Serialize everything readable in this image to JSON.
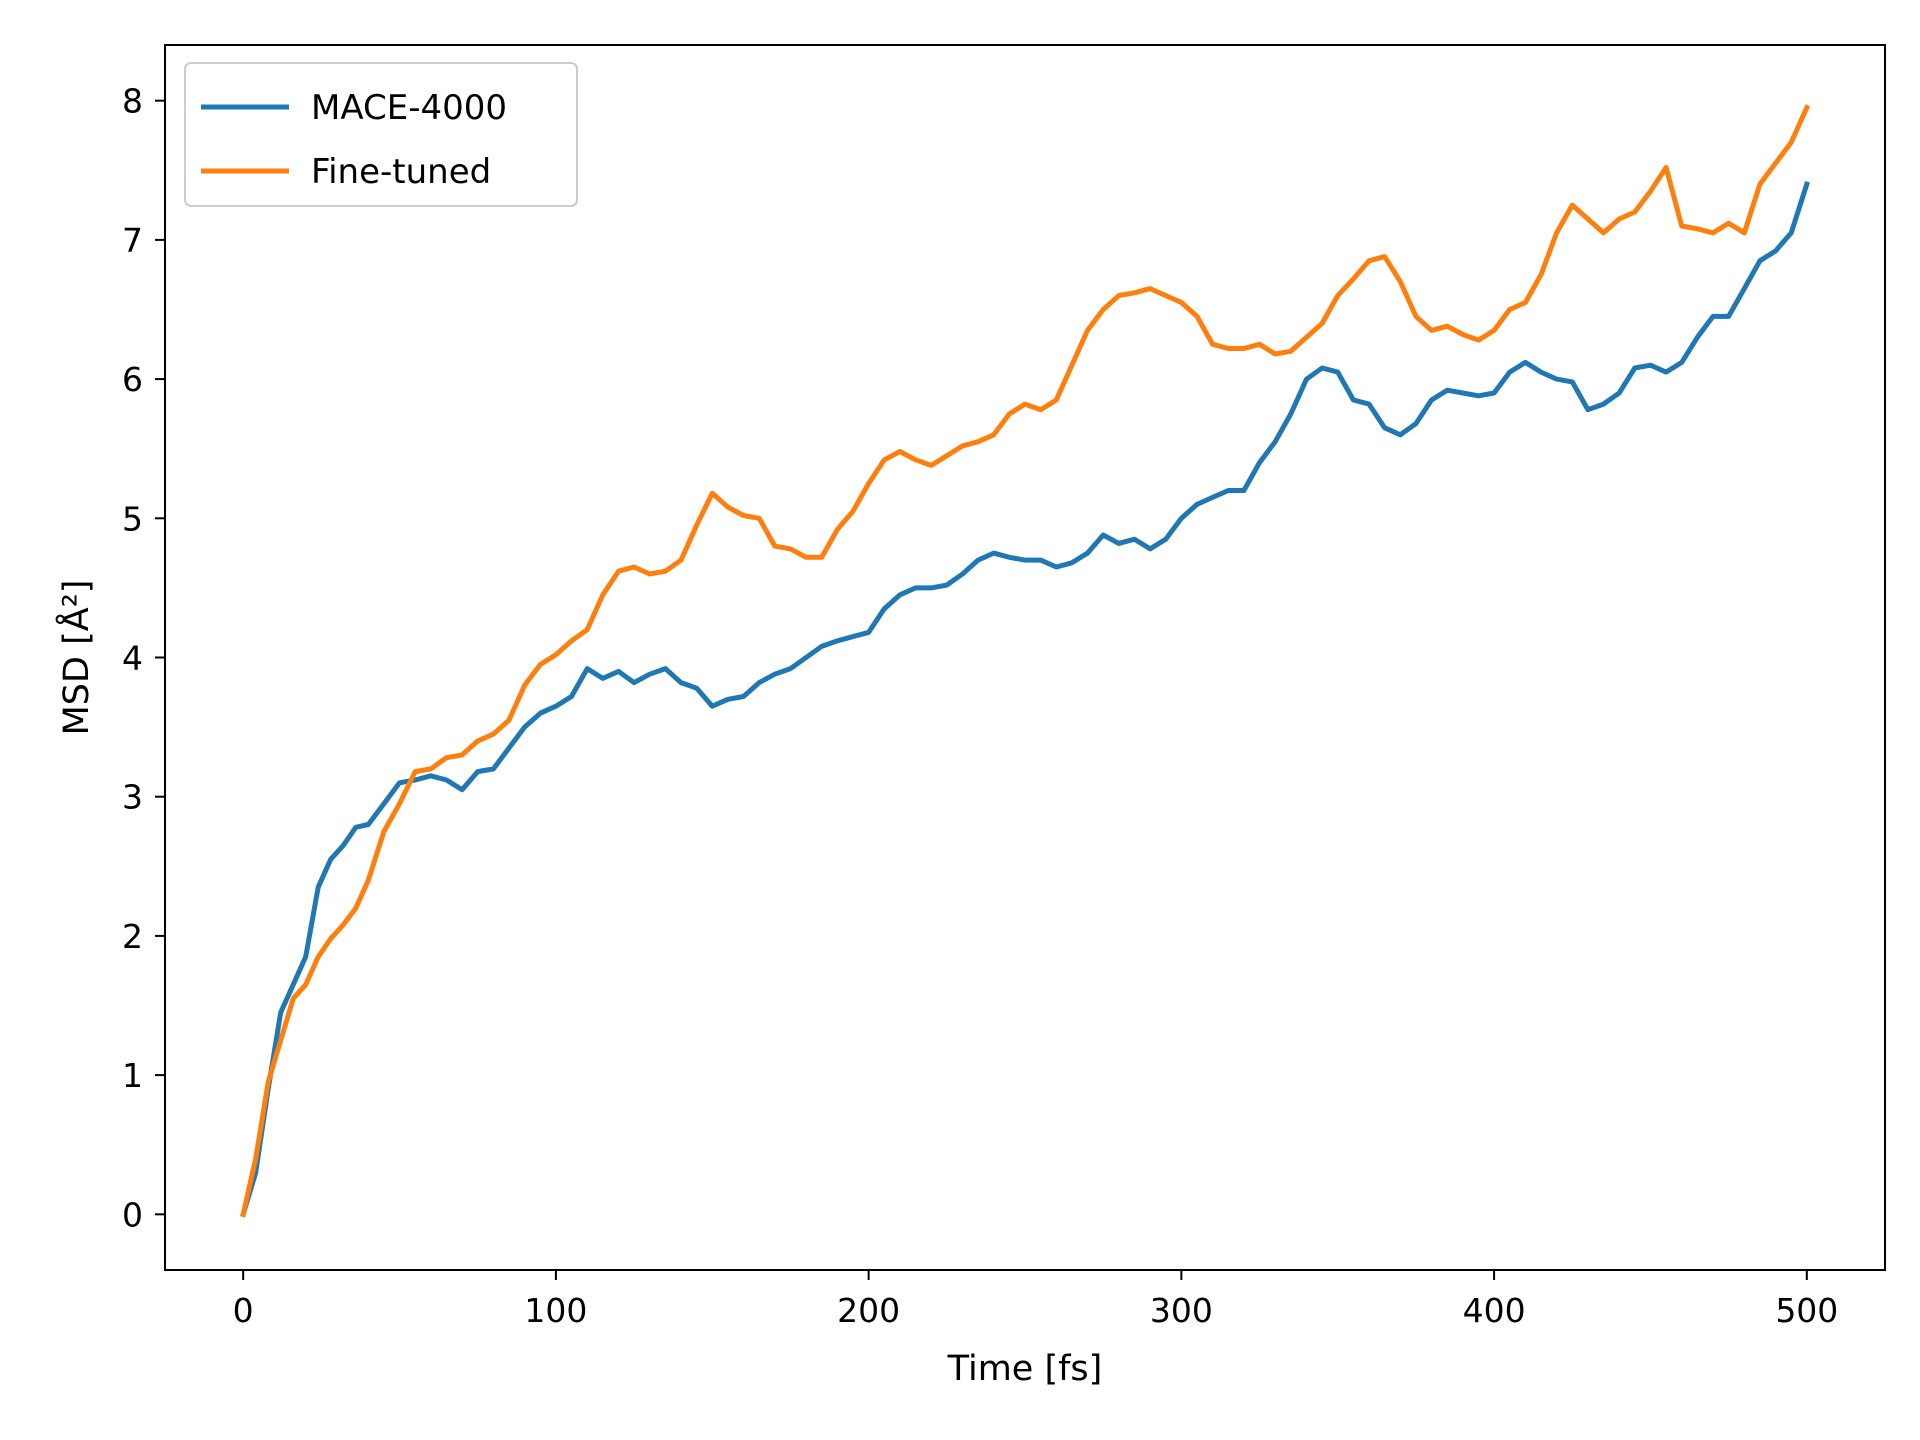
{
  "chart_data": {
    "type": "line",
    "title": "",
    "xlabel": "Time [fs]",
    "ylabel": "MSD [Å²]",
    "xlim": [
      -25,
      525
    ],
    "ylim": [
      -0.4,
      8.4
    ],
    "xticks": [
      0,
      100,
      200,
      300,
      400,
      500
    ],
    "yticks": [
      0,
      1,
      2,
      3,
      4,
      5,
      6,
      7,
      8
    ],
    "xtick_labels": [
      "0",
      "100",
      "200",
      "300",
      "400",
      "500"
    ],
    "ytick_labels": [
      "0",
      "1",
      "2",
      "3",
      "4",
      "5",
      "6",
      "7",
      "8"
    ],
    "grid": false,
    "legend_position": "top-left",
    "series": [
      {
        "name": "MACE-4000",
        "color": "#1f77b4",
        "x": [
          0,
          4,
          8,
          12,
          16,
          20,
          24,
          28,
          32,
          36,
          40,
          45,
          50,
          55,
          60,
          65,
          70,
          75,
          80,
          85,
          90,
          95,
          100,
          105,
          110,
          115,
          120,
          125,
          130,
          135,
          140,
          145,
          150,
          155,
          160,
          165,
          170,
          175,
          180,
          185,
          190,
          195,
          200,
          205,
          210,
          215,
          220,
          225,
          230,
          235,
          240,
          245,
          250,
          255,
          260,
          265,
          270,
          275,
          280,
          285,
          290,
          295,
          300,
          305,
          310,
          315,
          320,
          325,
          330,
          335,
          340,
          345,
          350,
          355,
          360,
          365,
          370,
          375,
          380,
          385,
          390,
          395,
          400,
          405,
          410,
          415,
          420,
          425,
          430,
          435,
          440,
          445,
          450,
          455,
          460,
          465,
          470,
          475,
          480,
          485,
          490,
          495,
          500
        ],
        "y": [
          0.0,
          0.3,
          0.9,
          1.45,
          1.65,
          1.85,
          2.35,
          2.55,
          2.65,
          2.78,
          2.8,
          2.95,
          3.1,
          3.12,
          3.15,
          3.12,
          3.05,
          3.18,
          3.2,
          3.35,
          3.5,
          3.6,
          3.65,
          3.72,
          3.92,
          3.85,
          3.9,
          3.82,
          3.88,
          3.92,
          3.82,
          3.78,
          3.65,
          3.7,
          3.72,
          3.82,
          3.88,
          3.92,
          4.0,
          4.08,
          4.12,
          4.15,
          4.18,
          4.35,
          4.45,
          4.5,
          4.5,
          4.52,
          4.6,
          4.7,
          4.75,
          4.72,
          4.7,
          4.7,
          4.65,
          4.68,
          4.75,
          4.88,
          4.82,
          4.85,
          4.78,
          4.85,
          5.0,
          5.1,
          5.15,
          5.2,
          5.2,
          5.4,
          5.55,
          5.75,
          6.0,
          6.08,
          6.05,
          5.85,
          5.82,
          5.65,
          5.6,
          5.68,
          5.85,
          5.92,
          5.9,
          5.88,
          5.9,
          6.05,
          6.12,
          6.05,
          6.0,
          5.98,
          5.78,
          5.82,
          5.9,
          6.08,
          6.1,
          6.05,
          6.12,
          6.3,
          6.45,
          6.45,
          6.65,
          6.85,
          6.92,
          7.05,
          7.4
        ]
      },
      {
        "name": "Fine-tuned",
        "color": "#ff7f0e",
        "x": [
          0,
          4,
          8,
          12,
          16,
          20,
          24,
          28,
          32,
          36,
          40,
          45,
          50,
          55,
          60,
          65,
          70,
          75,
          80,
          85,
          90,
          95,
          100,
          105,
          110,
          115,
          120,
          125,
          130,
          135,
          140,
          145,
          150,
          155,
          160,
          165,
          170,
          175,
          180,
          185,
          190,
          195,
          200,
          205,
          210,
          215,
          220,
          225,
          230,
          235,
          240,
          245,
          250,
          255,
          260,
          265,
          270,
          275,
          280,
          285,
          290,
          295,
          300,
          305,
          310,
          315,
          320,
          325,
          330,
          335,
          340,
          345,
          350,
          355,
          360,
          365,
          370,
          375,
          380,
          385,
          390,
          395,
          400,
          405,
          410,
          415,
          420,
          425,
          430,
          435,
          440,
          445,
          450,
          455,
          460,
          465,
          470,
          475,
          480,
          485,
          490,
          495,
          500
        ],
        "y": [
          0.0,
          0.4,
          0.95,
          1.25,
          1.55,
          1.65,
          1.85,
          1.98,
          2.08,
          2.2,
          2.4,
          2.75,
          2.95,
          3.18,
          3.2,
          3.28,
          3.3,
          3.4,
          3.45,
          3.55,
          3.8,
          3.95,
          4.02,
          4.12,
          4.2,
          4.45,
          4.62,
          4.65,
          4.6,
          4.62,
          4.7,
          4.95,
          5.18,
          5.08,
          5.02,
          5.0,
          4.8,
          4.78,
          4.72,
          4.72,
          4.92,
          5.05,
          5.25,
          5.42,
          5.48,
          5.42,
          5.38,
          5.45,
          5.52,
          5.55,
          5.6,
          5.75,
          5.82,
          5.78,
          5.85,
          6.1,
          6.35,
          6.5,
          6.6,
          6.62,
          6.65,
          6.6,
          6.55,
          6.45,
          6.25,
          6.22,
          6.22,
          6.25,
          6.18,
          6.2,
          6.3,
          6.4,
          6.6,
          6.72,
          6.85,
          6.88,
          6.7,
          6.45,
          6.35,
          6.38,
          6.32,
          6.28,
          6.35,
          6.5,
          6.55,
          6.75,
          7.05,
          7.25,
          7.15,
          7.05,
          7.15,
          7.2,
          7.35,
          7.52,
          7.1,
          7.08,
          7.05,
          7.12,
          7.05,
          7.4,
          7.55,
          7.7,
          7.95
        ]
      }
    ]
  }
}
